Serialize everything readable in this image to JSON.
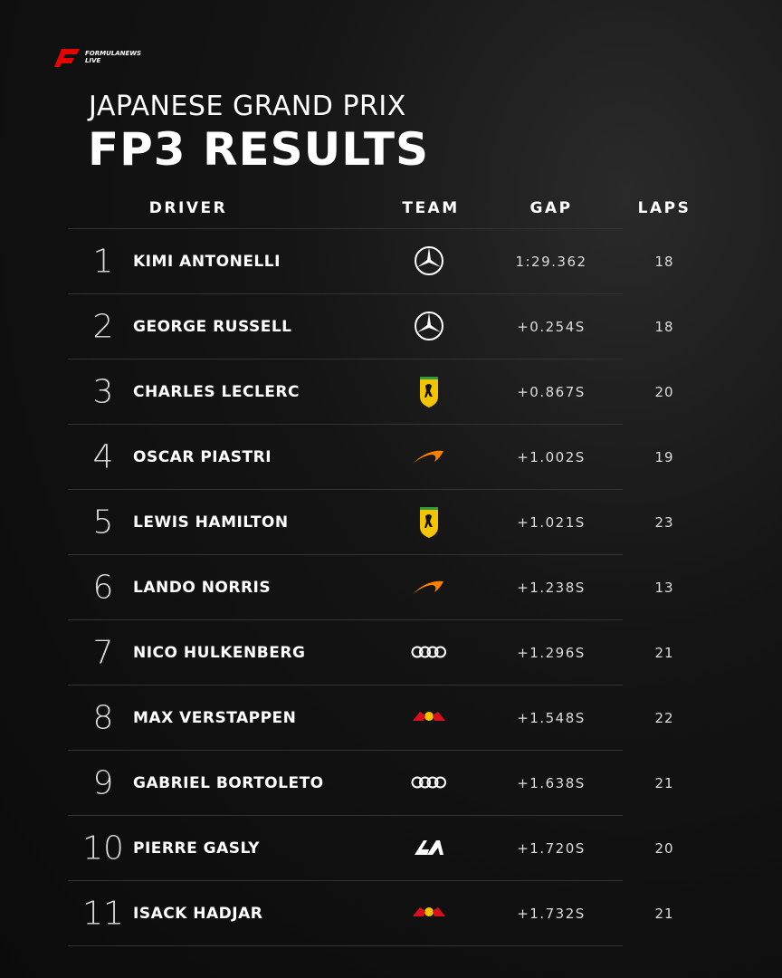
{
  "logo": {
    "name": "FORMULANEWS",
    "sub": "LIVE"
  },
  "header": {
    "subtitle": "JAPANESE GRAND PRIX",
    "title": "FP3 RESULTS"
  },
  "table": {
    "columns": [
      "DRIVER",
      "TEAM",
      "GAP",
      "LAPS"
    ],
    "rows": [
      [
        1,
        "KIMI ANTONELLI",
        "1:29.362",
        18
      ],
      [
        2,
        "GEORGE RUSSELL",
        "+0.254S",
        18
      ],
      [
        3,
        "CHARLES LECLERC",
        "+0.867S",
        20
      ],
      [
        4,
        "OSCAR PIASTRI",
        "+1.002S",
        19
      ],
      [
        5,
        "LEWIS HAMILTON",
        "+1.021S",
        23
      ],
      [
        6,
        "LANDO NORRIS",
        "+1.238S",
        13
      ],
      [
        7,
        "NICO HULKENBERG",
        "+1.296S",
        21
      ],
      [
        8,
        "MAX VERSTAPPEN",
        "+1.548S",
        22
      ],
      [
        9,
        "GABRIEL BORTOLETO",
        "+1.638S",
        21
      ],
      [
        10,
        "PIERRE GASLY",
        "+1.720S",
        20
      ],
      [
        11,
        "ISACK HADJAR",
        "+1.732S",
        21
      ]
    ]
  }
}
